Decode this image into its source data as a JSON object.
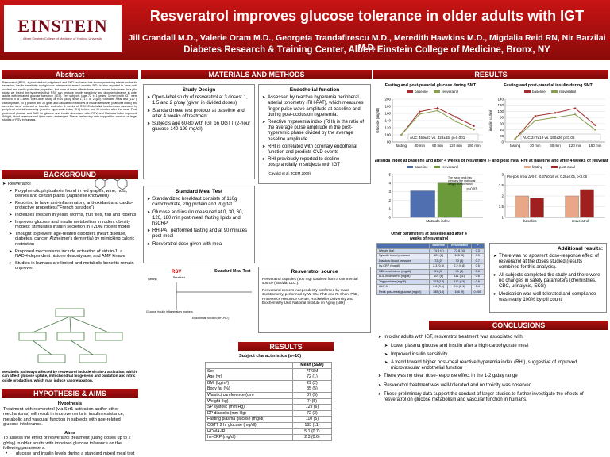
{
  "header": {
    "logo": "EINSTEIN",
    "logo_sub": "Albert Einstein College of Medicine of Yeshiva University",
    "title": "Resveratrol improves glucose tolerance in older adults with IGT",
    "authors": "Jill Crandall M.D., Valerie Oram M.D., Georgeta Trandafirescu M.D., Meredith Hawkins M.D., Migdalia Reid RN, Nir Barzilai  M.D.",
    "affiliation": "Diabetes Research & Training Center,   Albert Einstein College of Medicine, Bronx, NY"
  },
  "abstract": {
    "heading": "Abstract",
    "text": "Resveratrol (RSV), a plant-derived polyphenol and SirT1 activator, has shown promising effects on insulin secretion, insulin sensitivity and glucose tolerance in animal models. RSV is also reported to have anti-oxidant and cardio-protective properties, but none of these effects have been proven in humans. In a pilot study, we tested the hypothesis that RSV can improve insulin sensitivity and glucose tolerance in older adults with impaired glucose tolerance (IGT). Ten subjects (age 72 ± 1 years, 3 men) with IGT were enrolled in a 4-week open-label study of RSV (daily dose 1, 1.5 or 2 g/d). Standard meal test (110 g carbohydrate, 20 g protein and 20 g fat) and calculated measures of insulin sensitivity (Matsuda index) and secretion were obtained at baseline and after 4 weeks of RSV. Endothelial function was assessed by peripheral arterial tonometry (reactive hyperemia index, RHI) before and 90 minutes after the meal. Peak post-meal glucose and AUC for glucose and insulin decreased after RSV, and Matsuda index improved. Weight, blood pressure and lipids were unchanged. These preliminary data support the conduct of larger studies of RSV in humans."
  },
  "background": {
    "heading": "BACKGROUND",
    "subheading": "Resveratrol",
    "items": [
      "Polyphenolic phytoalexin found in red grapes, wine, nuts, berries and certain plants (Japanese knotweed)",
      "Reported to have anti-inflammatory, anti-oxidant and cardio-protective properties (\"French paradox\")",
      "Increases lifespan in yeast, worms, fruit flies, fish and rodents",
      "Improves glucose and insulin metabolism in rodent obesity models; stimulates insulin secretion in T2DM rodent model",
      "Thought to prevent age-related disorders (heart disease, diabetes, cancer, Alzheimer's dementia) by mimicking caloric restriction",
      "Proposed mechanisms include activation of sirtuin-1, a NADH-dependent histone deacetylase, and AMP kinase",
      "Studies in humans are limited and metabolic benefits remain unproven"
    ],
    "caption": "Metabolic pathways affected by resveratrol include sirtuin-1 activation, which can affect glucose uptake, mitochondrial biogenesis and oxidation and nitric oxide production, which may induce vasorelaxation."
  },
  "hypothesis": {
    "heading": "HYPOTHESIS & AIMS",
    "hyp_title": "Hypothesis",
    "hyp_text": "Treatment with resveratrol (via Sirt1 activation and/or other mechanisms) will result in improvements in insulin resistance, metabolic and vascular function in subjects with age-related glucose intolerance.",
    "aims_title": "Aims",
    "aims_text": "To assess the effect of resveratrol treatment (using doses up to 2 g/day) in older adults with impaired glucose tolerance on the following parameters:",
    "aims_items": [
      "glucose and insulin levels during a standard mixed meal test",
      "insulin sensitivity",
      "inflammation and endothelial function",
      "safety and tolerability"
    ]
  },
  "methods": {
    "heading": "MATERIALS AND METHODS",
    "study_design": {
      "title": "Study Design",
      "items": [
        "Open-label study of resveratrol at 3 doses: 1, 1.5 and 2 g/day (given in divided doses)",
        "Standard meal test protocol at baseline and after 4 weeks of treatment",
        "Subjects age 60-80 with IGT on OGTT (2-hour glucose 140-199 mg/dl)"
      ]
    },
    "endothelial": {
      "title": "Endothelial function",
      "items": [
        "Assessed by reactive hyperemia peripheral arterial tonometry (RH-PAT), which measures finger pulse wave amplitude at baseline and during post-occlusion hyperemia.",
        "Reactive hyperemia index (RHI) is the ratio of the average pulse amplitude in the post-hyperemic phase divided by the average baseline amplitude.",
        "RHI is correlated with coronary endothelial function and predicts CVD events",
        "RHI previously reported to decline postprandially in subjects with IGT"
      ],
      "citation": "(Cavalot et al. JCEM 2009)"
    },
    "meal_test": {
      "title": "Standard Meal Test",
      "items": [
        "Standardized breakfast consists of 110g carbohydrate, 20g protein and 20g fat.",
        "Glucose and insulin measured at 0, 30, 60, 120, 180 min post-meal; fasting lipids and hsCRP",
        "RH-PAT performed fasting and at 90 minutes post-meal",
        "Resveratrol dose given with meal"
      ]
    },
    "meal_diagram": {
      "title": "Standard Meal Test",
      "rsv": "RSV",
      "breakfast": "Breakfast",
      "fasting": "Fasting",
      "markers": "Glucose Insulin Inflammatory markers",
      "endo": "Endothelial function (RH-PAT)"
    },
    "source": {
      "title": "Resveratrol source",
      "items": [
        "Resveratrol capsules (500 mg) obtained from a commercial source (Biotivia, LLC.).",
        "Resveratrol content independently confirmed by mass spectrometry, performed by W. Wu, PhD and R. Shen, PhD, Proteomics Resource Center, Rockefeller University and Biochemistry Unit, National Institute on Aging (NIH)"
      ]
    }
  },
  "results_left": {
    "heading": "RESULTS",
    "title": "Subject characteristics (n=10)",
    "header": [
      "Mean (SEM)"
    ],
    "rows": [
      [
        "Sex",
        "7F/3M"
      ],
      [
        "Age (yr)",
        "72 (1)"
      ],
      [
        "BMI (kg/m²)",
        "29 (2)"
      ],
      [
        "Body fat (%)",
        "35 (5)"
      ],
      [
        "Waist circumference (cm)",
        "87 (5)"
      ],
      [
        "Weight (kg)",
        "74(5)"
      ],
      [
        "SP systolic (mm Hg)",
        "129 (6)"
      ],
      [
        "DP diastolic (mm Hg)",
        "72 (3)"
      ],
      [
        "Fasting plasma glucose (mg/dl)",
        "110 (5)"
      ],
      [
        "OGTT 2 hr glucose (mg/dl)",
        "183 (11)"
      ],
      [
        "HOMA-IR",
        "5.1 (0.7)"
      ],
      [
        "hs-CRP (mg/dl)",
        "2.3 (0.6)"
      ]
    ]
  },
  "results": {
    "heading": "RESULTS",
    "charts": [
      {
        "type": "line",
        "title": "Fasting and post-prandial glucose during SMT",
        "ylabel": "Glucose (mg/dl)",
        "categories": [
          "fasting",
          "30 min",
          "60 min",
          "120 min",
          "180 min"
        ],
        "ylim": [
          80,
          200
        ],
        "yticks": [
          80,
          100,
          120,
          140,
          160,
          180,
          200
        ],
        "series": [
          {
            "name": "baseline",
            "color": "#a03030",
            "values": [
              100,
              165,
              175,
              150,
              125
            ]
          },
          {
            "name": "resveratrol",
            "color": "#8aa050",
            "values": [
              100,
              158,
              168,
              138,
              115
            ]
          }
        ],
        "annotation": "AUC 469±23 vs. 428±15, p=0.001"
      },
      {
        "type": "line",
        "title": "Fasting and post-prandial insulin during SMT",
        "ylabel": "insulin uU/ml",
        "categories": [
          "fasting",
          "30 min",
          "60 min",
          "120 min",
          "180 min"
        ],
        "ylim": [
          0,
          140
        ],
        "yticks": [
          0,
          20,
          40,
          60,
          80,
          100,
          120,
          140
        ],
        "series": [
          {
            "name": "baseline",
            "color": "#a03030",
            "values": [
              10,
              85,
              95,
              110,
              55
            ]
          },
          {
            "name": "resveratrol",
            "color": "#8aa050",
            "values": [
              10,
              70,
              80,
              90,
              40
            ]
          }
        ],
        "annotation": "AUC 247±19 vs. 190±26 p<0.05"
      },
      {
        "type": "bar",
        "title": "Matsuda index at baseline and after 4 weeks of resveratrol",
        "categories": [
          "Matsuda index"
        ],
        "ylim": [
          0,
          5
        ],
        "yticks": [
          0,
          1,
          2,
          3,
          4,
          5
        ],
        "series": [
          {
            "name": "baseline",
            "color": "#4f6fb0",
            "values": [
              3.1
            ]
          },
          {
            "name": "resveratrol",
            "color": "#6a9a3a",
            "values": [
              4.0
            ]
          }
        ],
        "annotation": "p=0.03",
        "note": "The major peak has precisely the molecular weight of resveratrol"
      },
      {
        "type": "bar",
        "title": "Pre- and post meal RHI at baseline and after 4 weeks of resveratrol",
        "categories": [
          "baseline",
          "resveratrol"
        ],
        "ylim": [
          1,
          3
        ],
        "yticks": [
          1,
          1.5,
          2,
          2.5,
          3
        ],
        "series": [
          {
            "name": "fasting",
            "color": "#e8a888",
            "values": [
              2.0,
              2.0
            ]
          },
          {
            "name": "post-meal",
            "color": "#a02020",
            "values": [
              1.9,
              2.3
            ]
          }
        ],
        "annotation": "Pre-post meal ΔRHI: -0.37±0.16 vs. 0.28±0.05, p<0.05"
      }
    ],
    "other_table": {
      "title": "Other parameters at baseline and after 4 weeks of resveratrol",
      "header": [
        "Baseline",
        "Resveratrol",
        "P"
      ],
      "rows": [
        [
          "Weight (kg)",
          "74.8 (4)",
          "73.6 (4)",
          "0.3"
        ],
        [
          "Systolic blood pressure",
          "129 (6)",
          "128 (5)",
          "0.5"
        ],
        [
          "Diastolic blood pressure",
          "72 (2)",
          "70 (3)",
          "0.7"
        ],
        [
          "hs-CRP (mg/dl)",
          "2.3 (0.6)",
          "2.2 (0.8)",
          "0.5"
        ],
        [
          "HDL-cholesterol (mg/dl)",
          "51 (3)",
          "50 (4)",
          "0.8"
        ],
        [
          "LDL-cholesterol (mg/dl)",
          "104 (8)",
          "111 (11)",
          "0.6"
        ],
        [
          "Triglycerides (mg/dl)",
          "103 (13)",
          "112 (13)",
          "0.6"
        ],
        [
          "GLP-1",
          "0.6 (0.1)",
          "0.5 (0.1)",
          "0.4"
        ],
        [
          "Peak post-meal glucose (mg/dl)",
          "185 (10)",
          "166 (9)",
          "0.005"
        ]
      ]
    },
    "additional": {
      "title": "Additional results:",
      "items": [
        "There was no apparent dose-response effect of resveratrol at the doses studied (results combined for this analysis).",
        "All subjects completed the study and there were no changes in safety parameters (chemistries, CBC, urinalysis, EKG)",
        "Medication was well-tolerated and compliance was nearly 100% by pill count."
      ]
    }
  },
  "conclusions": {
    "heading": "CONCLUSIONS",
    "intro": "In older adults with IGT, resveratrol treatment was associated with:",
    "sub_items": [
      "Lower plasma glucose and insulin after a high-carbohydrate meal",
      "Improved insulin sensitivity",
      "A trend toward higher post-meal reactive hyperemia index (RHI), suggestive of improved microvascular endothelial function"
    ],
    "items": [
      "There was no clear dose-response effect in the 1-2 g/day range",
      "Resveratrol treatment was well-tolerated and no toxicity was observed",
      "These preliminary data support the conduct of larger studies to further investigate the effects of resveratrol on glucose metabolism and vascular function in humans."
    ]
  }
}
